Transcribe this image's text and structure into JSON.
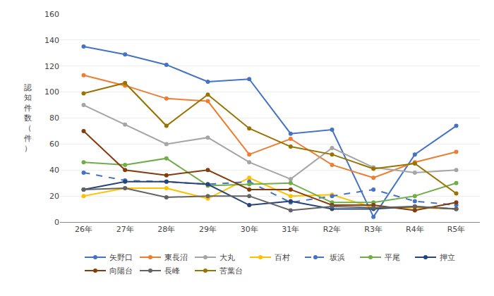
{
  "chart_data": {
    "type": "line",
    "categories": [
      "26年",
      "27年",
      "28年",
      "29年",
      "30年",
      "31年",
      "R2年",
      "R3年",
      "R4年",
      "R5年"
    ],
    "series": [
      {
        "name": "矢野口",
        "color": "#4472C4",
        "line_style": "solid",
        "values": [
          135,
          129,
          121,
          108,
          110,
          68,
          71,
          4,
          52,
          74
        ]
      },
      {
        "name": "東長沼",
        "color": "#ED7D31",
        "line_style": "solid",
        "values": [
          113,
          105,
          95,
          93,
          52,
          64,
          44,
          34,
          46,
          54
        ]
      },
      {
        "name": "大丸",
        "color": "#A5A5A5",
        "line_style": "solid",
        "values": [
          90,
          75,
          60,
          65,
          46,
          33,
          57,
          42,
          38,
          40
        ]
      },
      {
        "name": "百村",
        "color": "#FFC000",
        "line_style": "solid",
        "values": [
          20,
          26,
          26,
          18,
          34,
          20,
          21,
          11,
          11,
          10
        ]
      },
      {
        "name": "坂浜",
        "color": "#4472C4",
        "line_style": "dashed",
        "values": [
          38,
          32,
          31,
          29,
          31,
          15,
          20,
          25,
          16,
          13
        ]
      },
      {
        "name": "平尾",
        "color": "#70AD47",
        "line_style": "solid",
        "values": [
          46,
          44,
          49,
          28,
          29,
          30,
          15,
          15,
          20,
          30
        ]
      },
      {
        "name": "押立",
        "color": "#264478",
        "line_style": "solid",
        "values": [
          25,
          31,
          31,
          29,
          13,
          16,
          10,
          10,
          12,
          10
        ]
      },
      {
        "name": "向陽台",
        "color": "#843C0C",
        "line_style": "solid",
        "values": [
          70,
          40,
          36,
          40,
          25,
          25,
          13,
          13,
          9,
          15
        ]
      },
      {
        "name": "長峰",
        "color": "#636363",
        "line_style": "solid",
        "values": [
          25,
          26,
          19,
          20,
          20,
          9,
          12,
          11,
          12,
          10
        ]
      },
      {
        "name": "苦葉台",
        "color": "#997300",
        "line_style": "solid",
        "values": [
          99,
          107,
          74,
          98,
          72,
          58,
          52,
          41,
          45,
          22
        ]
      }
    ],
    "ylabel": "認\n知\n件\n数\n（\n件\n）",
    "ylim": [
      0,
      160
    ],
    "yticks": [
      0,
      20,
      40,
      60,
      80,
      100,
      120,
      140,
      160
    ],
    "grid": true,
    "legend": "bottom",
    "marker": "circle"
  }
}
